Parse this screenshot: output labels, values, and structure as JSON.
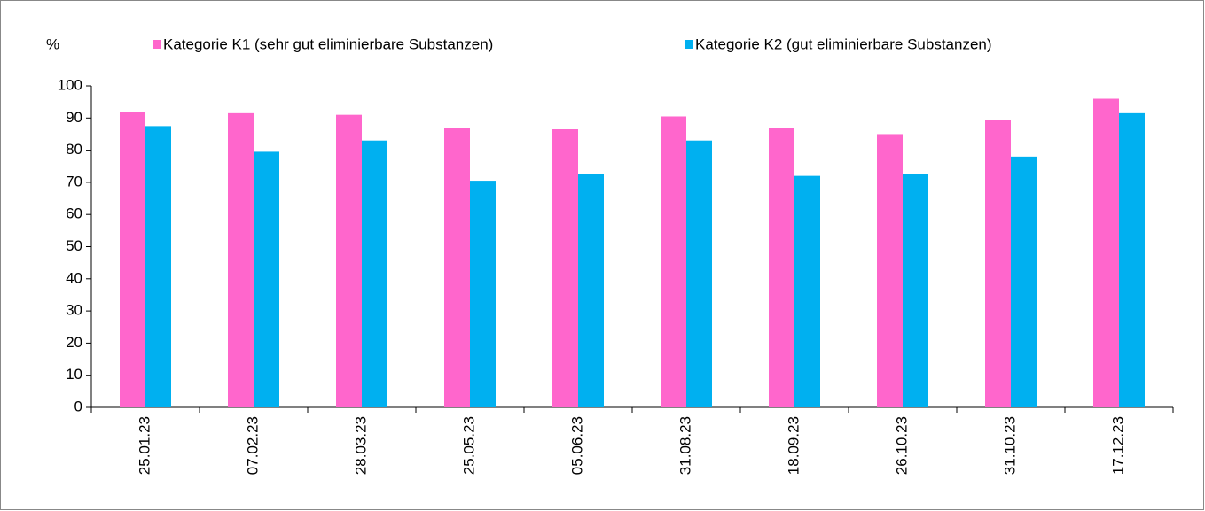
{
  "chart_data": {
    "type": "bar",
    "y_label": "%",
    "categories": [
      "25.01.23",
      "07.02.23",
      "28.03.23",
      "25.05.23",
      "05.06.23",
      "31.08.23",
      "18.09.23",
      "26.10.23",
      "31.10.23",
      "17.12.23"
    ],
    "series": [
      {
        "name": "Kategorie K1 (sehr gut eliminierbare Substanzen)",
        "color": "#ff66cc",
        "values": [
          92,
          91.5,
          91,
          87,
          86.5,
          90.5,
          87,
          85,
          89.5,
          96
        ]
      },
      {
        "name": "Kategorie K2 (gut eliminierbare Substanzen)",
        "color": "#00b0f0",
        "values": [
          87.5,
          79.5,
          83,
          70.5,
          72.5,
          83,
          72,
          72.5,
          78,
          91.5
        ]
      }
    ],
    "ylim": [
      0,
      100
    ],
    "yticks": [
      0,
      10,
      20,
      30,
      40,
      50,
      60,
      70,
      80,
      90,
      100
    ],
    "grid": false
  }
}
